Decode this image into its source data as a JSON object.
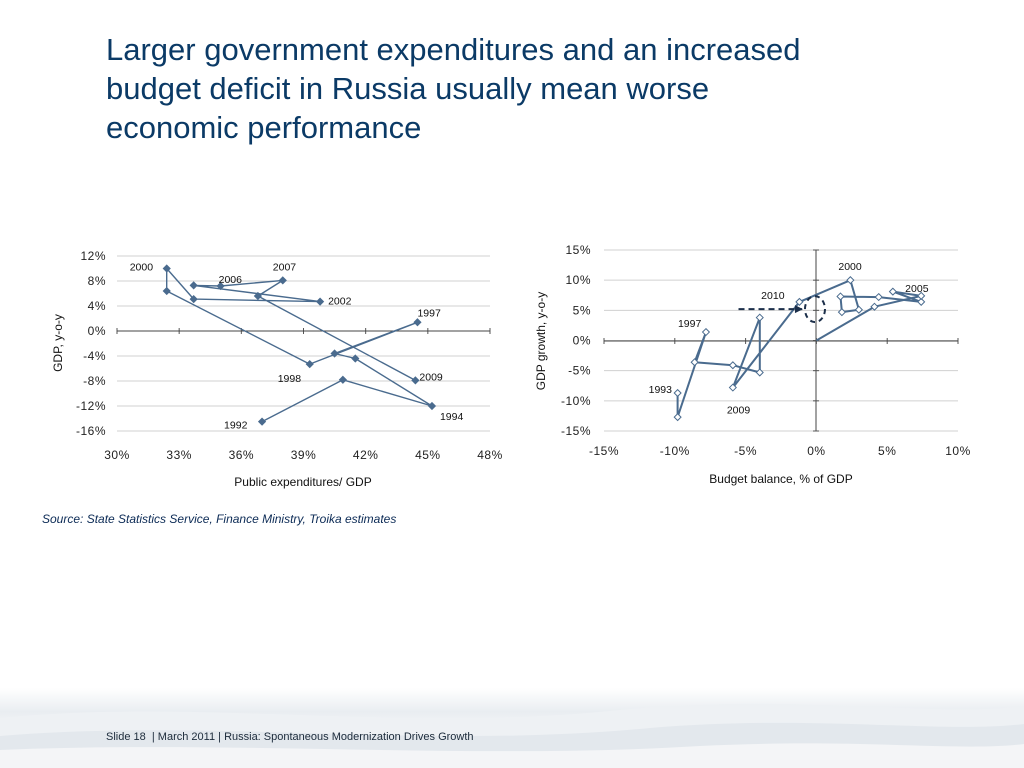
{
  "title_lines": [
    "Larger government expenditures and an increased",
    "budget deficit in Russia usually mean worse",
    "economic performance"
  ],
  "source": "Source: State Statistics Service, Finance Ministry, Troika estimates",
  "footer": {
    "slide": "Slide 18",
    "date": "March 2011",
    "deck_title": "Russia: Spontaneous Modernization Drives Growth"
  },
  "colors": {
    "line": "#4a6b8e",
    "title": "#0b3a66",
    "grid": "#d0d0d0"
  },
  "chart_data": [
    {
      "type": "line",
      "xlabel": "Public expenditures/ GDP",
      "ylabel": "GDP, y-o-y",
      "xlim": [
        30,
        48
      ],
      "ylim": [
        -16,
        12
      ],
      "x_ticks": [
        "30%",
        "33%",
        "36%",
        "39%",
        "42%",
        "45%",
        "48%"
      ],
      "y_ticks": [
        "12%",
        "8%",
        "4%",
        "0%",
        "-4%",
        "-8%",
        "-12%",
        "-16%"
      ],
      "grid": true,
      "marker": "diamond-filled",
      "series": [
        {
          "points": [
            {
              "x": 37.0,
              "y": -14.5,
              "label": "1992"
            },
            {
              "x": 40.9,
              "y": -7.8,
              "label": ""
            },
            {
              "x": 45.2,
              "y": -12.0,
              "label": "1994"
            },
            {
              "x": 41.5,
              "y": -4.4,
              "label": ""
            },
            {
              "x": 40.5,
              "y": -3.6,
              "label": ""
            },
            {
              "x": 44.5,
              "y": 1.4,
              "label": "1997"
            },
            {
              "x": 39.3,
              "y": -5.3,
              "label": "1998"
            },
            {
              "x": 32.4,
              "y": 6.4,
              "label": ""
            },
            {
              "x": 32.4,
              "y": 10.0,
              "label": "2000"
            },
            {
              "x": 33.7,
              "y": 5.1,
              "label": ""
            },
            {
              "x": 39.8,
              "y": 4.7,
              "label": "2002"
            },
            {
              "x": 33.7,
              "y": 7.3,
              "label": ""
            },
            {
              "x": 35.0,
              "y": 7.2,
              "label": "2006"
            },
            {
              "x": 38.0,
              "y": 8.1,
              "label": "2007"
            },
            {
              "x": 36.8,
              "y": 5.6,
              "label": ""
            },
            {
              "x": 44.4,
              "y": -7.9,
              "label": "2009"
            }
          ]
        }
      ]
    },
    {
      "type": "line",
      "xlabel": "Budget balance, % of GDP",
      "ylabel": "GDP growth, y-o-y",
      "xlim": [
        -15,
        10
      ],
      "ylim": [
        -15,
        15
      ],
      "x_ticks": [
        "-15%",
        "-10%",
        "-5%",
        "0%",
        "5%",
        "10%"
      ],
      "y_ticks": [
        "15%",
        "10%",
        "5%",
        "0%",
        "-5%",
        "-10%",
        "-15%"
      ],
      "grid": true,
      "marker": "diamond-hollow",
      "annotation": "2010",
      "series": [
        {
          "points": [
            {
              "x": -9.8,
              "y": -8.7,
              "label": "1993"
            },
            {
              "x": -9.8,
              "y": -12.7,
              "label": ""
            },
            {
              "x": -7.8,
              "y": 1.4,
              "label": "1997"
            },
            {
              "x": -8.6,
              "y": -3.6,
              "label": ""
            },
            {
              "x": -5.9,
              "y": -4.1,
              "label": ""
            },
            {
              "x": -4.0,
              "y": -5.3,
              "label": ""
            },
            {
              "x": -4.0,
              "y": 3.8,
              "label": ""
            },
            {
              "x": -5.9,
              "y": -7.8,
              "label": "2009"
            },
            {
              "x": -1.2,
              "y": 6.4,
              "label": ""
            },
            {
              "x": 2.4,
              "y": 10.0,
              "label": "2000"
            },
            {
              "x": 3.0,
              "y": 5.1,
              "label": ""
            },
            {
              "x": 1.8,
              "y": 4.7,
              "label": ""
            },
            {
              "x": 1.7,
              "y": 7.3,
              "label": ""
            },
            {
              "x": 4.4,
              "y": 7.2,
              "label": ""
            },
            {
              "x": 7.4,
              "y": 6.4,
              "label": "2005"
            },
            {
              "x": 5.4,
              "y": 8.1,
              "label": ""
            },
            {
              "x": 7.4,
              "y": 7.4,
              "label": ""
            },
            {
              "x": 4.1,
              "y": 5.6,
              "label": ""
            },
            {
              "x": 0.0,
              "y": 0.0,
              "label": ""
            }
          ]
        }
      ]
    }
  ]
}
